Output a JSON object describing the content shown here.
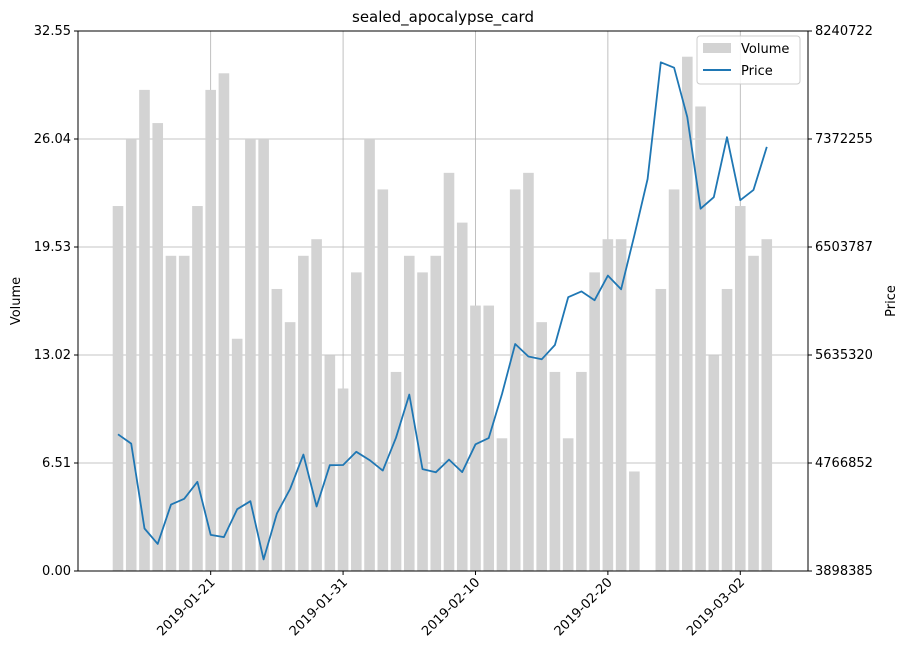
{
  "chart_data": {
    "type": "bar+line",
    "title": "sealed_apocalypse_card",
    "x_tick_labels": [
      "2019-01-21",
      "2019-01-31",
      "2019-02-10",
      "2019-02-20",
      "2019-03-02"
    ],
    "dates": [
      "2019-01-14",
      "2019-01-15",
      "2019-01-16",
      "2019-01-17",
      "2019-01-18",
      "2019-01-19",
      "2019-01-20",
      "2019-01-21",
      "2019-01-22",
      "2019-01-23",
      "2019-01-24",
      "2019-01-25",
      "2019-01-26",
      "2019-01-27",
      "2019-01-28",
      "2019-01-29",
      "2019-01-30",
      "2019-01-31",
      "2019-02-01",
      "2019-02-02",
      "2019-02-03",
      "2019-02-04",
      "2019-02-05",
      "2019-02-06",
      "2019-02-07",
      "2019-02-08",
      "2019-02-09",
      "2019-02-10",
      "2019-02-11",
      "2019-02-12",
      "2019-02-13",
      "2019-02-14",
      "2019-02-15",
      "2019-02-16",
      "2019-02-17",
      "2019-02-18",
      "2019-02-19",
      "2019-02-20",
      "2019-02-21",
      "2019-02-22",
      "2019-02-23",
      "2019-02-24",
      "2019-02-25",
      "2019-02-26",
      "2019-02-27",
      "2019-02-28",
      "2019-03-01",
      "2019-03-02",
      "2019-03-03",
      "2019-03-04"
    ],
    "volume": [
      22,
      26,
      29,
      27,
      19,
      19,
      22,
      29,
      30,
      14,
      26,
      26,
      17,
      15,
      19,
      20,
      13,
      11,
      18,
      26,
      23,
      12,
      19,
      18,
      19,
      24,
      21,
      16,
      16,
      8,
      23,
      24,
      15,
      12,
      8,
      12,
      18,
      20,
      20,
      6,
      null,
      17,
      23,
      31,
      28,
      13,
      17,
      22,
      19,
      20
    ],
    "price": [
      4998000,
      4923000,
      4240000,
      4116000,
      4432000,
      4479000,
      4616000,
      4189000,
      4171000,
      4395000,
      4460000,
      3992000,
      4361000,
      4558000,
      4834000,
      4417000,
      4749000,
      4751000,
      4857000,
      4790000,
      4706000,
      4970000,
      5317000,
      4718000,
      4692000,
      4794000,
      4694000,
      4917000,
      4967000,
      5322000,
      5724000,
      5623000,
      5601000,
      5716000,
      6100000,
      6147000,
      6076000,
      6274000,
      6164000,
      6599000,
      7051000,
      7989000,
      7946000,
      7548000,
      6812000,
      6904000,
      7387000,
      6880000,
      6963000,
      7309000
    ],
    "y_left_label": "Volume",
    "y_right_label": "Price",
    "y_left_ticks": [
      "0.00",
      "6.51",
      "13.02",
      "19.53",
      "26.04",
      "32.55"
    ],
    "y_right_ticks": [
      "3898385",
      "4766852",
      "5635320",
      "6503787",
      "7372255",
      "8240722"
    ],
    "y_left_range": [
      0,
      32.55
    ],
    "y_right_range": [
      3898385,
      8240722
    ],
    "legend": {
      "items": [
        "Volume",
        "Price"
      ],
      "placement": "top-right"
    },
    "grid": true,
    "colors": {
      "volume": "#d3d3d3",
      "price": "#1f77b4"
    }
  }
}
